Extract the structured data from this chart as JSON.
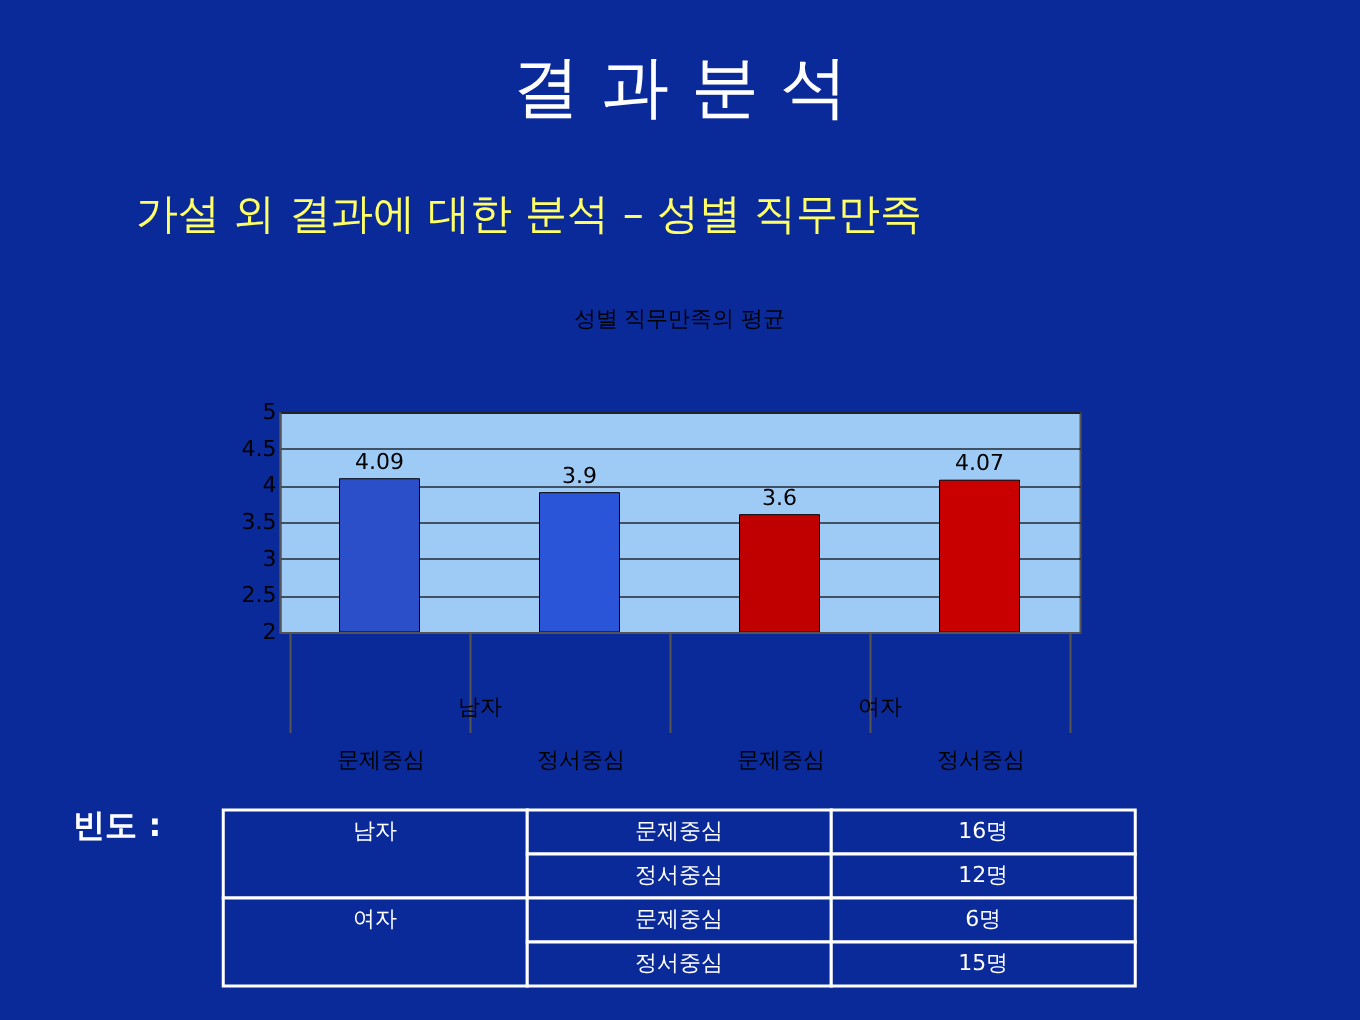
{
  "chart_data": {
    "type": "bar",
    "title": "성별 직무만족의 평균",
    "categories": [
      "문제중심",
      "정서중심",
      "문제중심",
      "정서중심"
    ],
    "values": [
      4.09,
      3.9,
      3.6,
      4.07
    ],
    "colors": [
      "#2a4fc8",
      "#2a55d8",
      "#c00000",
      "#c80000"
    ],
    "ylim": [
      2,
      5
    ],
    "yticks": [
      2,
      2.5,
      3,
      3.5,
      4,
      4.5,
      5
    ],
    "grid": "y",
    "data_labels": true,
    "annotations": [
      "결 과 분 석",
      "가설 외 결과에 대한 분석 – 성별 직무만족",
      "남자",
      "여자",
      "빈도 :",
      "남자",
      "문제중심",
      "16명",
      "정서중심",
      "12명",
      "여자",
      "문제중심",
      "6명",
      "정서중심",
      "15명"
    ]
  }
}
